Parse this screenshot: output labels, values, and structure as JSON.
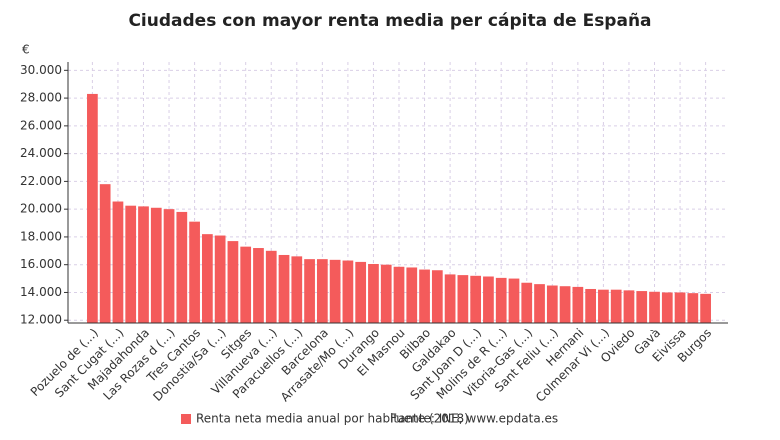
{
  "chart_data": {
    "type": "bar",
    "title": "Ciudades con mayor renta media per cápita de España",
    "y_unit": "€",
    "categories": [
      "Pozuelo de (...)",
      null,
      "Sant Cugat (...)",
      null,
      "Majadahonda",
      null,
      "Las Rozas d (...)",
      null,
      "Tres Cantos",
      null,
      "Donostia/Sa (...)",
      null,
      "Sitges",
      null,
      "Villanueva (...)",
      null,
      "Paracuellos (...)",
      null,
      "Barcelona",
      null,
      "Arrasate/Mo (...)",
      null,
      "Durango",
      null,
      "El Masnou",
      null,
      "Bilbao",
      null,
      "Galdakao",
      null,
      "Sant Joan D (...)",
      null,
      "Molins de R (...)",
      null,
      "Vitoria-Gas (...)",
      null,
      "Sant Feliu (...)",
      null,
      "Hernani",
      null,
      "Colmenar Vi (...)",
      null,
      "Oviedo",
      null,
      "Gavà",
      null,
      "Eivissa",
      null,
      "Burgos"
    ],
    "series": [
      {
        "name": "Renta neta media anual por habitante (2018)",
        "color": "#f45b5b",
        "values": [
          28300,
          21800,
          20550,
          20250,
          20200,
          20100,
          20000,
          19800,
          19100,
          18200,
          18100,
          17700,
          17300,
          17200,
          17000,
          16700,
          16600,
          16400,
          16400,
          16350,
          16300,
          16200,
          16050,
          16000,
          15850,
          15800,
          15650,
          15600,
          15300,
          15250,
          15200,
          15150,
          15050,
          15000,
          14700,
          14600,
          14500,
          14450,
          14400,
          14250,
          14200,
          14200,
          14150,
          14100,
          14050,
          14000,
          14000,
          13950,
          13900
        ]
      }
    ],
    "ylim": [
      11800,
      30600
    ],
    "yticks": [
      {
        "value": 12000,
        "label": "12.000"
      },
      {
        "value": 14000,
        "label": "14.000"
      },
      {
        "value": 16000,
        "label": "16.000"
      },
      {
        "value": 18000,
        "label": "18.000"
      },
      {
        "value": 20000,
        "label": "20.000"
      },
      {
        "value": 22000,
        "label": "22.000"
      },
      {
        "value": 24000,
        "label": "24.000"
      },
      {
        "value": 26000,
        "label": "26.000"
      },
      {
        "value": 28000,
        "label": "28.000"
      },
      {
        "value": 30000,
        "label": "30.000"
      }
    ],
    "grid": true,
    "source": "Fuente: INE, www.epdata.es"
  }
}
